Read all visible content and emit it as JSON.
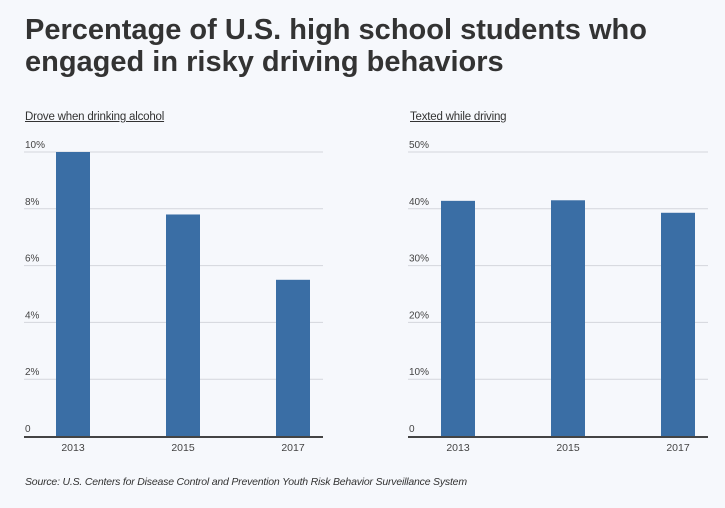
{
  "title": "Percentage of U.S. high school students who engaged in risky driving behaviors",
  "title_lines": [
    "Percentage of U.S. high school students who",
    "engaged in risky driving behaviors"
  ],
  "source": "Source: U.S. Centers for Disease Control and Prevention Youth Risk Behavior Surveillance System",
  "colors": {
    "bar": "#3a6ea5",
    "grid": "#d4d6dc",
    "axis": "#444444",
    "background": "#f6f8fc"
  },
  "chart_data": [
    {
      "type": "bar",
      "title": "Drove when drinking alcohol",
      "categories": [
        "2013",
        "2015",
        "2017"
      ],
      "values": [
        10.0,
        7.8,
        5.5
      ],
      "xlabel": "",
      "ylabel": "",
      "ylim": [
        0,
        10
      ],
      "yticks": [
        0,
        2,
        4,
        6,
        8,
        10
      ],
      "ytick_labels": [
        "0",
        "2%",
        "4%",
        "6%",
        "8%",
        "10%"
      ],
      "grid": true,
      "legend": "none"
    },
    {
      "type": "bar",
      "title": "Texted while driving",
      "categories": [
        "2013",
        "2015",
        "2017"
      ],
      "values": [
        41.4,
        41.5,
        39.3
      ],
      "xlabel": "",
      "ylabel": "",
      "ylim": [
        0,
        50
      ],
      "yticks": [
        0,
        10,
        20,
        30,
        40,
        50
      ],
      "ytick_labels": [
        "0",
        "10%",
        "20%",
        "30%",
        "40%",
        "50%"
      ],
      "grid": true,
      "legend": "none"
    }
  ]
}
